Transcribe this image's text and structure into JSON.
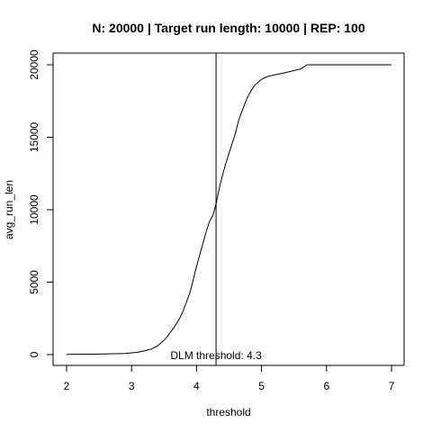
{
  "chart_data": {
    "type": "line",
    "title": "N: 20000 | Target run length: 10000 | REP: 100",
    "xlabel": "threshold",
    "ylabel": "avg_run_len",
    "xlim": [
      2,
      7
    ],
    "ylim": [
      0,
      20000
    ],
    "xticks": [
      2,
      3,
      4,
      5,
      6,
      7
    ],
    "yticks": [
      0,
      5000,
      10000,
      15000,
      20000
    ],
    "grid": false,
    "series": [
      {
        "color": "#000000",
        "x": [
          2.0,
          2.5,
          2.9,
          3.1,
          3.2,
          3.3,
          3.4,
          3.45,
          3.5,
          3.55,
          3.6,
          3.65,
          3.7,
          3.75,
          3.8,
          3.85,
          3.9,
          3.95,
          4.0,
          4.05,
          4.1,
          4.15,
          4.2,
          4.25,
          4.3,
          4.35,
          4.4,
          4.45,
          4.5,
          4.55,
          4.6,
          4.65,
          4.7,
          4.75,
          4.8,
          4.85,
          4.9,
          4.95,
          5.0,
          5.05,
          5.1,
          5.2,
          5.3,
          5.4,
          5.5,
          5.6,
          5.7,
          6.0,
          6.5,
          7.0
        ],
        "y": [
          20,
          40,
          80,
          160,
          260,
          380,
          600,
          800,
          1000,
          1250,
          1550,
          1850,
          2200,
          2600,
          3100,
          3700,
          4300,
          5200,
          6100,
          6900,
          7700,
          8500,
          9200,
          9600,
          10400,
          11500,
          12400,
          13200,
          13900,
          14600,
          15300,
          16200,
          16800,
          17400,
          17900,
          18300,
          18600,
          18800,
          19000,
          19100,
          19200,
          19300,
          19400,
          19500,
          19600,
          19700,
          20000,
          20000,
          20000,
          20000
        ]
      }
    ],
    "threshold_line": {
      "x": 4.3,
      "label": "DLM threshold: 4.3"
    }
  }
}
